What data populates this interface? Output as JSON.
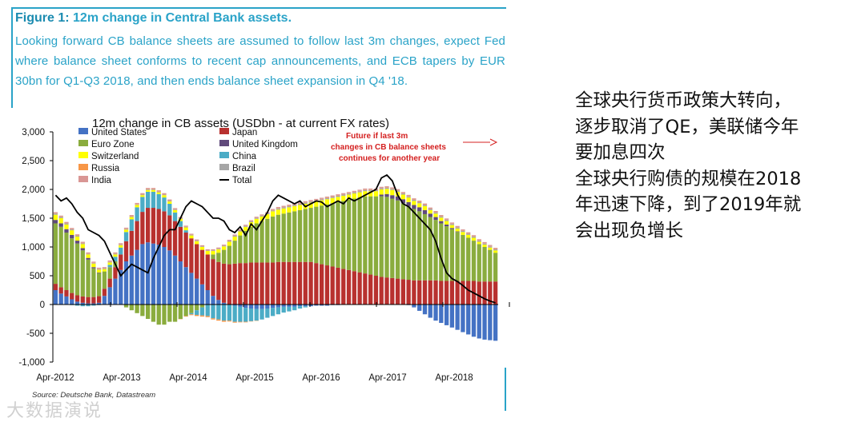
{
  "figure": {
    "label": "Figure 1:",
    "title": "12m change in Central Bank assets.",
    "caption": "Looking forward CB balance sheets are assumed to follow last 3m changes, expect Fed where balance sheet conforms to recent cap announcements, and ECB tapers by EUR 30bn for Q1-Q3 2018, and then ends balance sheet expansion in Q4 '18.",
    "source": "Source: Deutsche Bank, Datastream"
  },
  "annotation": {
    "lines": [
      "Future if last 3m",
      "changes in CB balance sheets",
      "continues for another year"
    ],
    "color": "#d42020"
  },
  "side_text": {
    "lines": [
      "全球央行货币政策大转向，",
      "逐步取消了QE，美联储今年",
      "要加息四次",
      "全球央行购债的规模在2018",
      "年迅速下降，到了2019年就",
      "会出现负增长"
    ]
  },
  "watermark": "大数据演说",
  "chart_data": {
    "type": "bar",
    "stacked": true,
    "title": "12m change in CB assets (USDbn - at current FX rates)",
    "ylim": [
      -1000,
      3000
    ],
    "yticks": [
      -1000,
      -500,
      0,
      500,
      1000,
      1500,
      2000,
      2500,
      3000
    ],
    "ytick_labels": [
      "-1,000",
      "-500",
      "0",
      "500",
      "1,000",
      "1,500",
      "2,000",
      "2,500",
      "3,000"
    ],
    "xtick_labels": [
      "Apr-2012",
      "Apr-2013",
      "Apr-2014",
      "Apr-2015",
      "Apr-2016",
      "Apr-2017",
      "Apr-2018"
    ],
    "grid": false,
    "legend_position": "top-left",
    "n_bars": 82,
    "series": [
      {
        "name": "United States",
        "color": "#4472c4",
        "values": [
          250,
          190,
          140,
          90,
          50,
          30,
          20,
          20,
          30,
          150,
          300,
          450,
          600,
          750,
          850,
          950,
          1050,
          1080,
          1060,
          1040,
          1000,
          940,
          850,
          750,
          650,
          550,
          450,
          350,
          250,
          150,
          80,
          30,
          0,
          -20,
          -40,
          -60,
          -70,
          -80,
          -80,
          -70,
          -60,
          -50,
          -40,
          -40,
          -40,
          -30,
          -30,
          -30,
          -20,
          -20,
          -20,
          -10,
          -10,
          0,
          0,
          0,
          0,
          0,
          0,
          0,
          0,
          0,
          0,
          0,
          0,
          -10,
          -50,
          -110,
          -170,
          -230,
          -280,
          -320,
          -360,
          -400,
          -440,
          -480,
          -520,
          -560,
          -590,
          -610,
          -620,
          -630
        ]
      },
      {
        "name": "Japan",
        "color": "#b8312f",
        "values": [
          110,
          110,
          110,
          110,
          110,
          110,
          110,
          110,
          115,
          125,
          150,
          200,
          270,
          350,
          430,
          500,
          560,
          600,
          620,
          620,
          620,
          610,
          600,
          600,
          600,
          600,
          600,
          600,
          620,
          640,
          660,
          680,
          700,
          710,
          720,
          720,
          730,
          730,
          730,
          730,
          730,
          740,
          740,
          740,
          740,
          740,
          740,
          740,
          720,
          700,
          680,
          660,
          640,
          620,
          600,
          580,
          560,
          540,
          520,
          500,
          480,
          470,
          460,
          450,
          440,
          430,
          420,
          420,
          420,
          420,
          420,
          410,
          410,
          410,
          410,
          410,
          410,
          410,
          400,
          400,
          400,
          400
        ]
      },
      {
        "name": "Euro Zone",
        "color": "#8aac3e",
        "values": [
          1050,
          1050,
          1000,
          950,
          900,
          800,
          650,
          500,
          400,
          300,
          200,
          100,
          0,
          -50,
          -100,
          -150,
          -200,
          -250,
          -300,
          -350,
          -350,
          -300,
          -300,
          -250,
          -200,
          -150,
          -100,
          -50,
          0,
          80,
          160,
          240,
          320,
          400,
          480,
          560,
          620,
          680,
          720,
          760,
          800,
          820,
          840,
          860,
          880,
          900,
          920,
          940,
          980,
          1020,
          1060,
          1100,
          1140,
          1180,
          1220,
          1260,
          1300,
          1340,
          1360,
          1380,
          1400,
          1400,
          1380,
          1360,
          1320,
          1280,
          1240,
          1200,
          1150,
          1100,
          1050,
          1000,
          950,
          900,
          850,
          800,
          750,
          700,
          650,
          600,
          550,
          500
        ]
      },
      {
        "name": "China",
        "color": "#4bacc6",
        "values": [
          0,
          0,
          0,
          -10,
          -20,
          -30,
          -30,
          -20,
          -10,
          0,
          40,
          80,
          120,
          160,
          200,
          240,
          260,
          280,
          280,
          260,
          240,
          200,
          150,
          100,
          40,
          -20,
          -80,
          -140,
          -200,
          -240,
          -260,
          -280,
          -280,
          -280,
          -260,
          -240,
          -220,
          -200,
          -180,
          -160,
          -140,
          -120,
          -100,
          -80,
          -60,
          -40,
          -20,
          0,
          0,
          0,
          0,
          0,
          0,
          0,
          0,
          0,
          0,
          0,
          0,
          0,
          0,
          0,
          0,
          0,
          0,
          0,
          0,
          0,
          0,
          0,
          0,
          0,
          0,
          0,
          0,
          0,
          0,
          0,
          0,
          0,
          0,
          0
        ]
      },
      {
        "name": "United Kingdom",
        "color": "#604a7b",
        "values": [
          60,
          60,
          60,
          60,
          50,
          40,
          30,
          20,
          10,
          0,
          0,
          0,
          0,
          0,
          0,
          0,
          0,
          0,
          0,
          0,
          0,
          0,
          0,
          0,
          0,
          0,
          0,
          0,
          0,
          0,
          0,
          0,
          0,
          0,
          0,
          0,
          0,
          0,
          0,
          0,
          0,
          0,
          0,
          0,
          0,
          0,
          0,
          0,
          0,
          0,
          0,
          0,
          0,
          0,
          0,
          0,
          0,
          0,
          0,
          0,
          30,
          50,
          60,
          70,
          70,
          70,
          70,
          70,
          70,
          60,
          50,
          40,
          30,
          20,
          10,
          0,
          0,
          0,
          0,
          0,
          0,
          0
        ]
      },
      {
        "name": "Switzerland",
        "color": "#ffff00",
        "values": [
          90,
          90,
          80,
          80,
          70,
          70,
          60,
          60,
          50,
          40,
          40,
          40,
          40,
          40,
          40,
          40,
          30,
          30,
          30,
          30,
          40,
          40,
          40,
          40,
          50,
          50,
          50,
          50,
          60,
          60,
          60,
          60,
          70,
          70,
          70,
          70,
          80,
          80,
          80,
          80,
          90,
          90,
          90,
          90,
          90,
          90,
          90,
          90,
          90,
          90,
          90,
          90,
          90,
          90,
          90,
          90,
          90,
          90,
          90,
          90,
          90,
          90,
          90,
          80,
          80,
          80,
          70,
          70,
          70,
          60,
          60,
          60,
          60,
          50,
          50,
          50,
          50,
          50,
          40,
          40,
          40,
          40
        ]
      },
      {
        "name": "Brazil",
        "color": "#a6a6a6",
        "values": [
          20,
          20,
          20,
          15,
          15,
          15,
          10,
          10,
          10,
          10,
          10,
          10,
          10,
          10,
          10,
          10,
          10,
          10,
          10,
          10,
          10,
          10,
          10,
          10,
          10,
          10,
          10,
          10,
          10,
          10,
          10,
          10,
          15,
          15,
          15,
          15,
          15,
          15,
          15,
          15,
          15,
          20,
          20,
          20,
          20,
          20,
          20,
          20,
          20,
          20,
          20,
          20,
          20,
          20,
          20,
          20,
          20,
          20,
          20,
          20,
          20,
          20,
          20,
          20,
          20,
          20,
          20,
          20,
          20,
          20,
          20,
          20,
          20,
          20,
          20,
          20,
          20,
          20,
          20,
          20,
          20,
          20
        ]
      },
      {
        "name": "Russia",
        "color": "#f79646",
        "values": [
          5,
          5,
          5,
          5,
          5,
          5,
          5,
          5,
          5,
          5,
          5,
          5,
          5,
          5,
          5,
          5,
          5,
          5,
          5,
          5,
          5,
          5,
          5,
          -5,
          -10,
          -15,
          -20,
          -20,
          -20,
          -20,
          -20,
          -20,
          -15,
          -15,
          -10,
          -10,
          -5,
          -5,
          0,
          0,
          5,
          5,
          5,
          5,
          5,
          5,
          5,
          5,
          5,
          5,
          5,
          5,
          5,
          5,
          5,
          5,
          5,
          5,
          5,
          5,
          5,
          5,
          5,
          5,
          5,
          5,
          5,
          5,
          5,
          5,
          5,
          5,
          5,
          5,
          5,
          5,
          5,
          5,
          5,
          5,
          5,
          5
        ]
      },
      {
        "name": "India",
        "color": "#d99694",
        "values": [
          20,
          20,
          20,
          20,
          20,
          20,
          20,
          20,
          20,
          20,
          20,
          20,
          20,
          20,
          20,
          20,
          20,
          20,
          20,
          20,
          20,
          20,
          20,
          20,
          20,
          20,
          20,
          20,
          20,
          20,
          20,
          20,
          20,
          20,
          20,
          20,
          20,
          20,
          20,
          20,
          20,
          20,
          20,
          20,
          20,
          20,
          20,
          20,
          20,
          20,
          20,
          20,
          20,
          20,
          20,
          20,
          20,
          20,
          20,
          20,
          20,
          20,
          20,
          20,
          20,
          20,
          20,
          20,
          20,
          20,
          20,
          20,
          20,
          20,
          20,
          20,
          20,
          20,
          20,
          20,
          20,
          20
        ]
      }
    ],
    "total": {
      "name": "Total",
      "color": "#000000",
      "values": [
        1900,
        1800,
        1850,
        1750,
        1600,
        1500,
        1300,
        1250,
        1200,
        1100,
        900,
        700,
        500,
        600,
        700,
        650,
        600,
        550,
        800,
        1000,
        1200,
        1300,
        1300,
        1500,
        1700,
        1800,
        1750,
        1700,
        1600,
        1500,
        1500,
        1450,
        1300,
        1250,
        1350,
        1200,
        1400,
        1300,
        1450,
        1600,
        1800,
        1900,
        1850,
        1800,
        1750,
        1800,
        1700,
        1750,
        1800,
        1780,
        1700,
        1750,
        1800,
        1750,
        1850,
        1800,
        1850,
        1900,
        1950,
        2000,
        2200,
        2250,
        2150,
        1900,
        1750,
        1700,
        1600,
        1500,
        1400,
        1300,
        1100,
        800,
        550,
        450,
        400,
        330,
        250,
        200,
        150,
        100,
        60,
        30
      ]
    }
  }
}
